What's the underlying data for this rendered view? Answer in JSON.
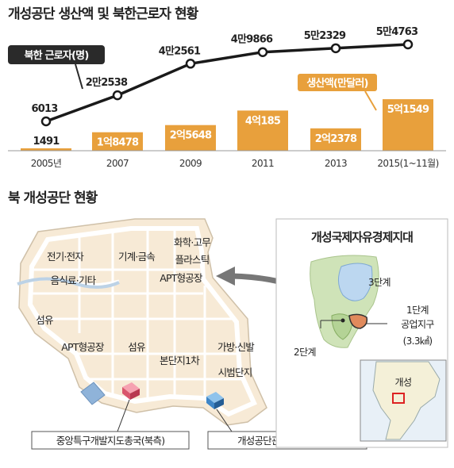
{
  "title": "개성공단 생산액 및 북한근로자 현황",
  "chart_data": {
    "type": "bar",
    "categories": [
      "2005년",
      "2007",
      "2009",
      "2011",
      "2013",
      "2015(1~11월)"
    ],
    "series": [
      {
        "name": "북한 근로자(명)",
        "type": "line",
        "values": [
          6013,
          22538,
          42561,
          49866,
          52329,
          54763
        ],
        "labels": [
          "6013",
          "2만2538",
          "4만2561",
          "4만9866",
          "5만2329",
          "5만4763"
        ]
      },
      {
        "name": "생산액(만달러)",
        "type": "bar",
        "values": [
          1491,
          18478,
          25648,
          40185,
          22378,
          51549
        ],
        "labels": [
          "1491",
          "1억8478",
          "2억5648",
          "4억185",
          "2억2378",
          "5억1549"
        ]
      }
    ],
    "colors": {
      "bar": "#e8a03c",
      "line": "#1a1a1a",
      "workers_tag": "#2a2a2a",
      "output_tag": "#e8a03c"
    }
  },
  "map": {
    "title": "북 개성공단 현황",
    "zones": {
      "electronics": "전기·전자",
      "machinery": "기계·금속",
      "chemical": "화학·고무",
      "plastics": "플라스틱",
      "food": "음식료·기타",
      "apt_factory_top": "APT형공장",
      "textile_left": "섬유",
      "apt_factory_left": "APT형공장",
      "textile_center": "섬유",
      "main_complex": "본단지1차",
      "bags_shoes": "가방·신발",
      "pilot_complex": "시범단지"
    },
    "labels": {
      "north_office": "중앙특구개발지도총국(북측)",
      "south_office": "개성공단관리위원회(남측)"
    },
    "inset": {
      "title": "개성국제자유경제지대",
      "phase3": "3단계",
      "phase2": "2단계",
      "phase1_line1": "1단계",
      "phase1_line2": "공업지구",
      "phase1_area": "(3.3㎢)",
      "city": "개성"
    }
  }
}
